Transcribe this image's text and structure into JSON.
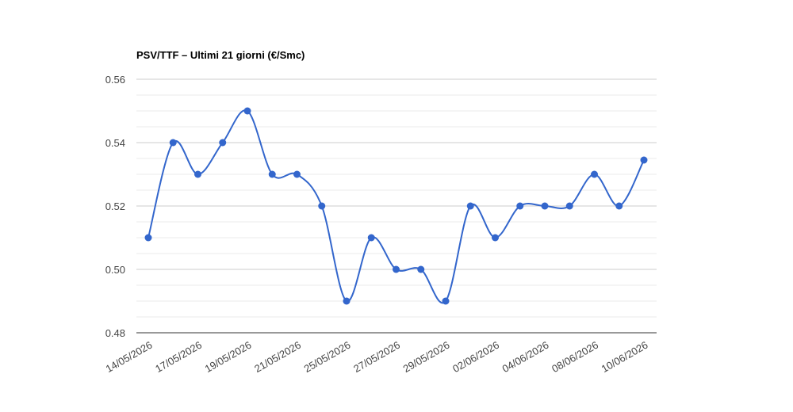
{
  "chart_data": {
    "type": "line",
    "title": "PSV/TTF – Ultimi 21 giorni (€/Smc)",
    "categories": [
      "14/05/2026",
      null,
      "17/05/2026",
      null,
      "19/05/2026",
      null,
      "21/05/2026",
      null,
      "25/05/2026",
      null,
      "27/05/2026",
      null,
      "29/05/2026",
      null,
      "02/06/2026",
      null,
      "04/06/2026",
      null,
      "08/06/2026",
      null,
      "10/06/2026"
    ],
    "values": [
      0.51,
      0.54,
      0.53,
      0.54,
      0.55,
      0.53,
      0.53,
      0.52,
      0.49,
      0.51,
      0.5,
      0.5,
      0.49,
      0.52,
      0.51,
      0.52,
      0.52,
      0.52,
      0.53,
      0.52,
      0.5345
    ],
    "color": "#3366cc",
    "ylim": [
      0.48,
      0.56
    ],
    "yticks": [
      {
        "value": 0.48,
        "label": "0.48"
      },
      {
        "value": 0.5,
        "label": "0.50"
      },
      {
        "value": 0.52,
        "label": "0.52"
      },
      {
        "value": 0.54,
        "label": "0.54"
      },
      {
        "value": 0.56,
        "label": "0.56"
      }
    ],
    "minor_yticks": [
      0.485,
      0.49,
      0.495,
      0.505,
      0.51,
      0.515,
      0.525,
      0.53,
      0.535,
      0.545,
      0.55,
      0.555
    ],
    "grid": true
  }
}
